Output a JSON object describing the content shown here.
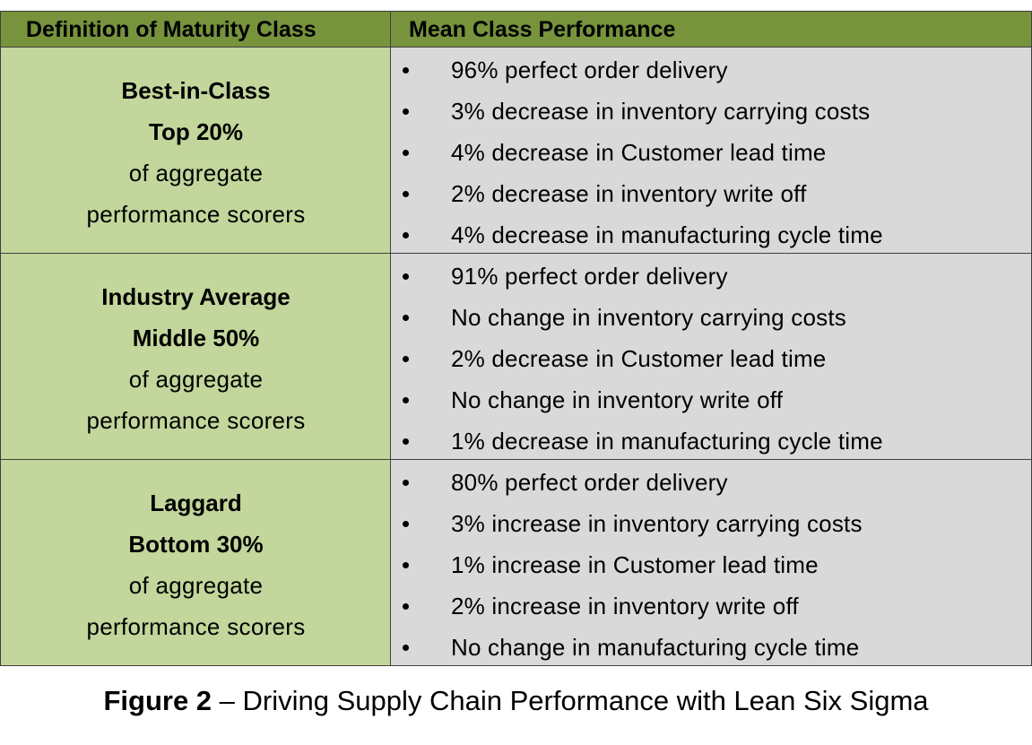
{
  "table": {
    "header": [
      "Definition of Maturity Class",
      "Mean Class Performance"
    ],
    "rows": [
      {
        "class_name": "Best-in-Class",
        "segment": "Top 20%",
        "description": [
          "of aggregate",
          "performance scorers"
        ],
        "bullets": [
          "96% perfect order delivery",
          "3% decrease in inventory carrying costs",
          "4% decrease in Customer lead time",
          "2% decrease in inventory write off",
          "4% decrease in manufacturing cycle time"
        ]
      },
      {
        "class_name": "Industry Average",
        "segment": "Middle 50%",
        "description": [
          "of aggregate",
          "performance scorers"
        ],
        "bullets": [
          "91% perfect order delivery",
          "No change in inventory carrying costs",
          "2% decrease in Customer lead time",
          "No change in inventory write off",
          "1% decrease in manufacturing cycle time"
        ]
      },
      {
        "class_name": "Laggard",
        "segment": "Bottom 30%",
        "description": [
          "of aggregate",
          "performance scorers"
        ],
        "bullets": [
          "80% perfect order delivery",
          "3% increase in inventory carrying costs",
          "1% increase in Customer lead time",
          "2% increase in inventory write off",
          "No change in manufacturing cycle time"
        ]
      }
    ]
  },
  "caption": {
    "label": "Figure 2",
    "text": " – Driving Supply Chain Performance with Lean Six Sigma"
  }
}
